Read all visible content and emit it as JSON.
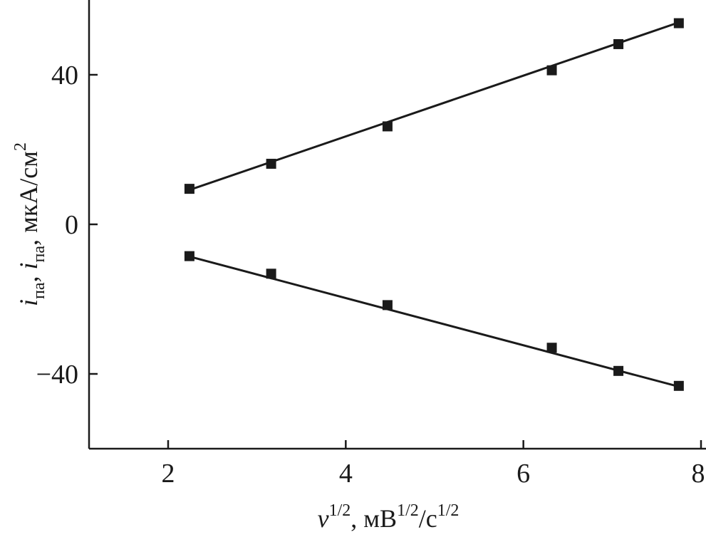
{
  "chart_data": {
    "type": "scatter",
    "xlabel": {
      "base": "v",
      "exp": "1/2",
      "text": ", мВ",
      "unit_exp1": "1/2",
      "unit_mid": "/с",
      "unit_exp2": "1/2"
    },
    "ylabel": {
      "i1": "i",
      "sub1": "па",
      "sep": ", ",
      "i2": "i",
      "sub2": "па",
      "unit": ", мкА/см",
      "unit_exp": "2"
    },
    "xlim": [
      1.2,
      8.0
    ],
    "ylim": [
      -60,
      60
    ],
    "xticks": [
      2,
      4,
      6,
      8
    ],
    "xtick_labels": [
      "2",
      "4",
      "6",
      "8"
    ],
    "yticks": [
      40,
      0,
      -40
    ],
    "ytick_labels": [
      "40",
      "0",
      "−40"
    ],
    "series": [
      {
        "x": [
          2.24,
          3.16,
          4.47,
          6.32,
          7.07,
          7.75
        ],
        "y": [
          9.5,
          16.2,
          26.2,
          41.2,
          48.2,
          53.8
        ],
        "fit": {
          "x": [
            2.24,
            7.75
          ],
          "y": [
            9.2,
            54.0
          ]
        },
        "marker": "square"
      },
      {
        "x": [
          2.24,
          3.16,
          4.47,
          6.32,
          7.07,
          7.75
        ],
        "y": [
          -8.5,
          -13.2,
          -21.6,
          -33.0,
          -39.2,
          -43.2
        ],
        "fit": {
          "x": [
            2.24,
            7.75
          ],
          "y": [
            -8.6,
            -43.4
          ]
        },
        "marker": "square"
      }
    ],
    "colors": {
      "ink": "#1a1a1a"
    },
    "grid": false,
    "legend": "none"
  }
}
